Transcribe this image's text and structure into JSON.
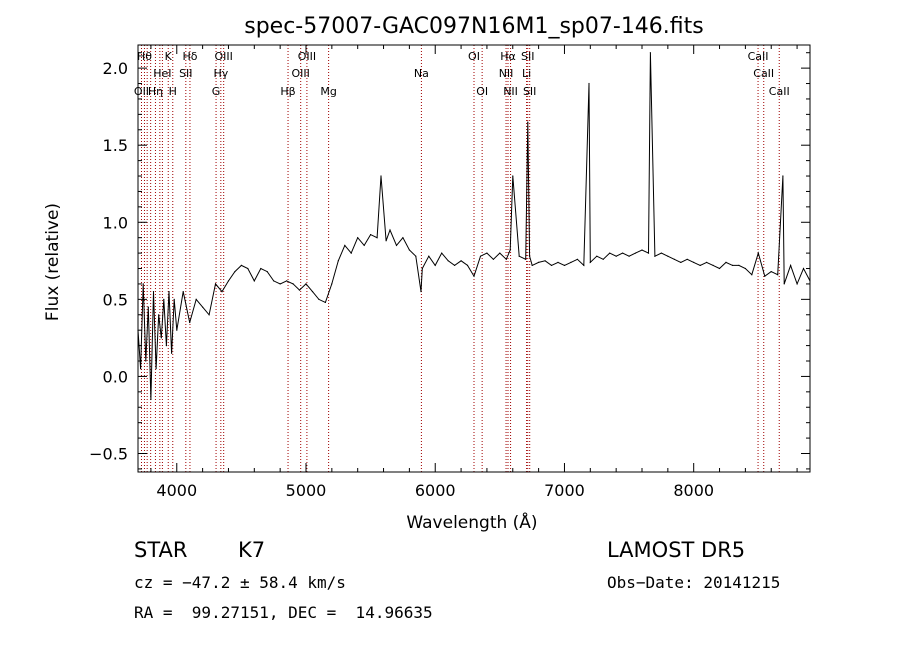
{
  "chart_data": {
    "type": "line",
    "title": "spec-57007-GAC097N16M1_sp07-146.fits",
    "xlabel": "Wavelength (Å)",
    "ylabel": "Flux (relative)",
    "xlim": [
      3700,
      8900
    ],
    "ylim": [
      -0.62,
      2.15
    ],
    "xticks": [
      4000,
      5000,
      6000,
      7000,
      8000
    ],
    "yticks": [
      -0.5,
      0.0,
      0.5,
      1.0,
      1.5,
      2.0
    ],
    "xtick_labels": [
      "4000",
      "5000",
      "6000",
      "7000",
      "8000"
    ],
    "ytick_labels": [
      "−0.5",
      "0.0",
      "0.5",
      "1.0",
      "1.5",
      "2.0"
    ],
    "line_color": "#000000",
    "marker_color": "#a00000",
    "grid": false,
    "series": [
      {
        "x": [
          3700,
          3720,
          3740,
          3760,
          3780,
          3800,
          3820,
          3840,
          3860,
          3880,
          3900,
          3920,
          3940,
          3960,
          3980,
          4000,
          4050,
          4100,
          4150,
          4200,
          4250,
          4300,
          4350,
          4400,
          4450,
          4500,
          4550,
          4600,
          4650,
          4700,
          4750,
          4800,
          4850,
          4900,
          4950,
          5000,
          5050,
          5100,
          5150,
          5200,
          5250,
          5300,
          5350,
          5400,
          5450,
          5500,
          5550,
          5580,
          5620,
          5650,
          5700,
          5750,
          5800,
          5850,
          5890,
          5900,
          5950,
          6000,
          6050,
          6100,
          6150,
          6200,
          6250,
          6300,
          6350,
          6400,
          6450,
          6500,
          6550,
          6580,
          6600,
          6650,
          6700,
          6716,
          6730,
          6750,
          6800,
          6850,
          6900,
          6950,
          7000,
          7050,
          7100,
          7150,
          7190,
          7200,
          7250,
          7300,
          7350,
          7400,
          7450,
          7500,
          7550,
          7600,
          7650,
          7665,
          7700,
          7750,
          7800,
          7850,
          7900,
          7950,
          8000,
          8050,
          8100,
          8150,
          8200,
          8250,
          8300,
          8350,
          8400,
          8450,
          8500,
          8550,
          8600,
          8650,
          8690,
          8700,
          8750,
          8800,
          8850,
          8900
        ],
        "y": [
          0.3,
          0.05,
          0.6,
          0.1,
          0.45,
          -0.15,
          0.55,
          0.05,
          0.4,
          0.25,
          0.5,
          0.2,
          0.55,
          0.15,
          0.5,
          0.3,
          0.55,
          0.35,
          0.5,
          0.45,
          0.4,
          0.6,
          0.55,
          0.62,
          0.68,
          0.72,
          0.7,
          0.62,
          0.7,
          0.68,
          0.62,
          0.6,
          0.62,
          0.6,
          0.56,
          0.6,
          0.55,
          0.5,
          0.48,
          0.6,
          0.75,
          0.85,
          0.8,
          0.9,
          0.85,
          0.92,
          0.9,
          1.3,
          0.88,
          0.95,
          0.85,
          0.9,
          0.82,
          0.78,
          0.55,
          0.7,
          0.78,
          0.72,
          0.8,
          0.75,
          0.72,
          0.75,
          0.72,
          0.65,
          0.78,
          0.8,
          0.76,
          0.8,
          0.76,
          0.82,
          1.3,
          0.78,
          0.76,
          1.65,
          0.78,
          0.72,
          0.74,
          0.75,
          0.72,
          0.74,
          0.72,
          0.74,
          0.76,
          0.72,
          1.9,
          0.74,
          0.78,
          0.76,
          0.8,
          0.78,
          0.8,
          0.78,
          0.8,
          0.82,
          0.8,
          2.1,
          0.78,
          0.8,
          0.78,
          0.76,
          0.74,
          0.76,
          0.74,
          0.72,
          0.74,
          0.72,
          0.7,
          0.74,
          0.72,
          0.72,
          0.7,
          0.66,
          0.8,
          0.65,
          0.68,
          0.66,
          1.3,
          0.6,
          0.72,
          0.6,
          0.7,
          0.62
        ]
      }
    ],
    "lines": [
      {
        "x": 3727,
        "label": "OII",
        "row": 3
      },
      {
        "x": 3750,
        "label": "Hθ",
        "row": 1
      },
      {
        "x": 3771,
        "label": "",
        "row": 0
      },
      {
        "x": 3798,
        "label": "",
        "row": 0
      },
      {
        "x": 3835,
        "label": "Hη",
        "row": 3
      },
      {
        "x": 3869,
        "label": "",
        "row": 0
      },
      {
        "x": 3889,
        "label": "HeI",
        "row": 2
      },
      {
        "x": 3934,
        "label": "K",
        "row": 1
      },
      {
        "x": 3969,
        "label": "H",
        "row": 3
      },
      {
        "x": 4070,
        "label": "SII",
        "row": 2
      },
      {
        "x": 4102,
        "label": "Hδ",
        "row": 1
      },
      {
        "x": 4304,
        "label": "G",
        "row": 3
      },
      {
        "x": 4341,
        "label": "Hγ",
        "row": 2
      },
      {
        "x": 4363,
        "label": "OIII",
        "row": 1
      },
      {
        "x": 4861,
        "label": "Hβ",
        "row": 3
      },
      {
        "x": 4959,
        "label": "OIII",
        "row": 2
      },
      {
        "x": 5007,
        "label": "OIII",
        "row": 1
      },
      {
        "x": 5175,
        "label": "Mg",
        "row": 3
      },
      {
        "x": 5893,
        "label": "Na",
        "row": 2
      },
      {
        "x": 6300,
        "label": "OI",
        "row": 1
      },
      {
        "x": 6363,
        "label": "OI",
        "row": 3
      },
      {
        "x": 6548,
        "label": "NII",
        "row": 2
      },
      {
        "x": 6563,
        "label": "Hα",
        "row": 1
      },
      {
        "x": 6583,
        "label": "NII",
        "row": 3
      },
      {
        "x": 6707,
        "label": "Li",
        "row": 2
      },
      {
        "x": 6716,
        "label": "SII",
        "row": 1
      },
      {
        "x": 6731,
        "label": "SII",
        "row": 3
      },
      {
        "x": 8498,
        "label": "CaII",
        "row": 1
      },
      {
        "x": 8542,
        "label": "CaII",
        "row": 2
      },
      {
        "x": 8662,
        "label": "CaII",
        "row": 3
      }
    ]
  },
  "info": {
    "object_class": "STAR",
    "subclass": "K7",
    "survey": "LAMOST DR5",
    "cz_line": "cz = −47.2 ± 58.4 km/s",
    "obs_date": "Obs−Date: 20141215",
    "coords": "RA =  99.27151, DEC =  14.96635"
  }
}
